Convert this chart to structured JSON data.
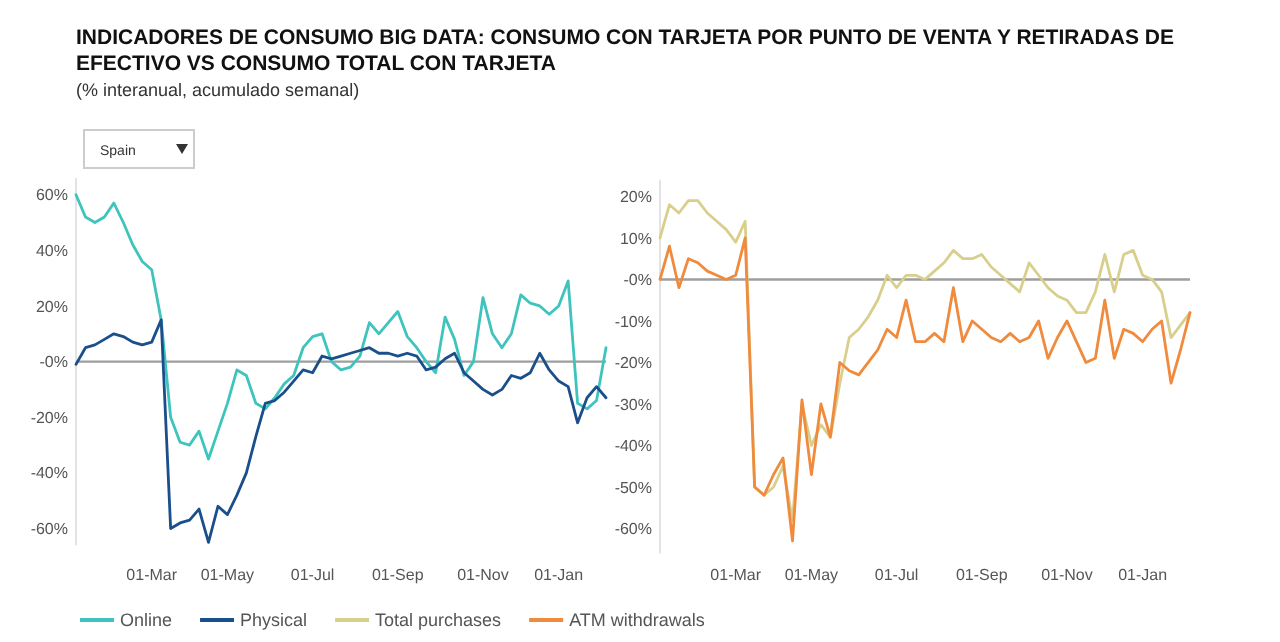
{
  "chart_data": [
    {
      "type": "line",
      "title": "INDICADORES DE CONSUMO BIG DATA: CONSUMO CON TARJETA POR PUNTO DE VENTA Y RETIRADAS DE EFECTIVO VS CONSUMO TOTAL CON TARJETA",
      "subtitle": "(% interanual, acumulado semanal)",
      "annotations": [
        "Spain"
      ],
      "categories": [
        null,
        null,
        null,
        null,
        null,
        null,
        null,
        null,
        "01-Mar",
        null,
        null,
        null,
        null,
        null,
        null,
        null,
        "01-May",
        null,
        null,
        null,
        null,
        null,
        null,
        null,
        null,
        "01-Jul",
        null,
        null,
        null,
        null,
        null,
        null,
        null,
        null,
        "01-Sep",
        null,
        null,
        null,
        null,
        null,
        null,
        null,
        null,
        "01-Nov",
        null,
        null,
        null,
        null,
        null,
        null,
        null,
        "01-Jan",
        null,
        null,
        null,
        null,
        null
      ],
      "ylim": [
        -66,
        66
      ],
      "yticks": [
        {
          "value": 60,
          "label": "60%"
        },
        {
          "value": 40,
          "label": "40%"
        },
        {
          "value": 20,
          "label": "20%"
        },
        {
          "value": 0,
          "label": "-0%"
        },
        {
          "value": -20,
          "label": "-20%"
        },
        {
          "value": -40,
          "label": "-40%"
        },
        {
          "value": -60,
          "label": "-60%"
        }
      ],
      "ref_lines": [
        {
          "axis": "y",
          "value": 0,
          "color": "#9e9e9e"
        }
      ],
      "legend": "bottom",
      "series": [
        {
          "name": "Online",
          "color": "#3fc4bd",
          "values": [
            60,
            52,
            50,
            52,
            57,
            50,
            42,
            36,
            33,
            15,
            -20,
            -29,
            -30,
            -25,
            -35,
            -25,
            -15,
            -3,
            -5,
            -15,
            -17,
            -13,
            -8,
            -5,
            5,
            9,
            10,
            0,
            -3,
            -2,
            2,
            14,
            10,
            14,
            18,
            9,
            5,
            0,
            -4,
            16,
            8,
            -5,
            0,
            23,
            10,
            5,
            10,
            24,
            21,
            20,
            17,
            20,
            29,
            -15,
            -17,
            -14,
            5
          ]
        },
        {
          "name": "Physical",
          "color": "#1b4f8c",
          "values": [
            -1,
            5,
            6,
            8,
            10,
            9,
            7,
            6,
            7,
            15,
            -60,
            -58,
            -57,
            -53,
            -65,
            -52,
            -55,
            -48,
            -40,
            -27,
            -15,
            -14,
            -11,
            -7,
            -3,
            -4,
            2,
            1,
            2,
            3,
            4,
            5,
            3,
            3,
            2,
            3,
            2,
            -3,
            -2,
            1,
            3,
            -4,
            -7,
            -10,
            -12,
            -10,
            -5,
            -6,
            -4,
            3,
            -3,
            -7,
            -9,
            -22,
            -13,
            -9,
            -13
          ]
        }
      ]
    },
    {
      "type": "line",
      "categories": [
        null,
        null,
        null,
        null,
        null,
        null,
        null,
        null,
        "01-Mar",
        null,
        null,
        null,
        null,
        null,
        null,
        null,
        "01-May",
        null,
        null,
        null,
        null,
        null,
        null,
        null,
        null,
        "01-Jul",
        null,
        null,
        null,
        null,
        null,
        null,
        null,
        null,
        "01-Sep",
        null,
        null,
        null,
        null,
        null,
        null,
        null,
        null,
        "01-Nov",
        null,
        null,
        null,
        null,
        null,
        null,
        null,
        "01-Jan",
        null,
        null,
        null,
        null,
        null
      ],
      "ylim": [
        -66,
        24
      ],
      "yticks": [
        {
          "value": 20,
          "label": "20%"
        },
        {
          "value": 10,
          "label": "10%"
        },
        {
          "value": 0,
          "label": "-0%"
        },
        {
          "value": -10,
          "label": "-10%"
        },
        {
          "value": -20,
          "label": "-20%"
        },
        {
          "value": -30,
          "label": "-30%"
        },
        {
          "value": -40,
          "label": "-40%"
        },
        {
          "value": -50,
          "label": "-50%"
        },
        {
          "value": -60,
          "label": "-60%"
        }
      ],
      "ref_lines": [
        {
          "axis": "y",
          "value": 0,
          "color": "#9e9e9e"
        }
      ],
      "legend": "bottom",
      "series": [
        {
          "name": "Total purchases",
          "color": "#d9cf8c",
          "values": [
            10,
            18,
            16,
            19,
            19,
            16,
            14,
            12,
            9,
            14,
            -50,
            -52,
            -50,
            -45,
            -58,
            -30,
            -40,
            -35,
            -38,
            -25,
            -14,
            -12,
            -9,
            -5,
            1,
            -2,
            1,
            1,
            0,
            2,
            4,
            7,
            5,
            5,
            6,
            3,
            1,
            -1,
            -3,
            4,
            1,
            -2,
            -4,
            -5,
            -8,
            -8,
            -3,
            6,
            -3,
            6,
            7,
            1,
            0,
            -3,
            -14,
            -11,
            -8
          ]
        },
        {
          "name": "ATM withdrawals",
          "color": "#f08a3c",
          "values": [
            0,
            8,
            -2,
            5,
            4,
            2,
            1,
            0,
            1,
            10,
            -50,
            -52,
            -47,
            -43,
            -63,
            -29,
            -47,
            -30,
            -38,
            -20,
            -22,
            -23,
            -20,
            -17,
            -12,
            -14,
            -5,
            -15,
            -15,
            -13,
            -15,
            -2,
            -15,
            -10,
            -12,
            -14,
            -15,
            -13,
            -15,
            -14,
            -10,
            -19,
            -14,
            -10,
            -15,
            -20,
            -19,
            -5,
            -19,
            -12,
            -13,
            -15,
            -12,
            -10,
            -25,
            -17,
            -8
          ]
        }
      ]
    }
  ]
}
